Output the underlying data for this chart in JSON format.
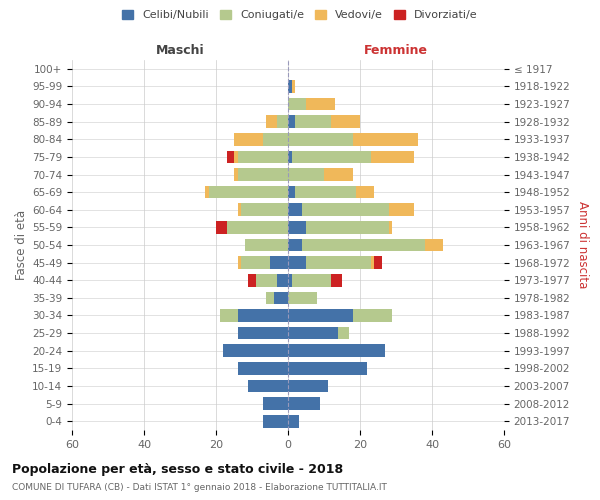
{
  "age_groups": [
    "0-4",
    "5-9",
    "10-14",
    "15-19",
    "20-24",
    "25-29",
    "30-34",
    "35-39",
    "40-44",
    "45-49",
    "50-54",
    "55-59",
    "60-64",
    "65-69",
    "70-74",
    "75-79",
    "80-84",
    "85-89",
    "90-94",
    "95-99",
    "100+"
  ],
  "birth_years": [
    "2013-2017",
    "2008-2012",
    "2003-2007",
    "1998-2002",
    "1993-1997",
    "1988-1992",
    "1983-1987",
    "1978-1982",
    "1973-1977",
    "1968-1972",
    "1963-1967",
    "1958-1962",
    "1953-1957",
    "1948-1952",
    "1943-1947",
    "1938-1942",
    "1933-1937",
    "1928-1932",
    "1923-1927",
    "1918-1922",
    "≤ 1917"
  ],
  "colors": {
    "celibi": "#4472a8",
    "coniugati": "#b5c98e",
    "vedovi": "#f0b85a",
    "divorziati": "#cc2222"
  },
  "maschi": {
    "celibi": [
      7,
      7,
      11,
      14,
      18,
      14,
      14,
      4,
      3,
      5,
      0,
      0,
      0,
      0,
      0,
      0,
      0,
      0,
      0,
      0,
      0
    ],
    "coniugati": [
      0,
      0,
      0,
      0,
      0,
      0,
      5,
      2,
      6,
      8,
      12,
      17,
      13,
      22,
      14,
      14,
      7,
      3,
      0,
      0,
      0
    ],
    "vedovi": [
      0,
      0,
      0,
      0,
      0,
      0,
      0,
      0,
      0,
      1,
      0,
      0,
      1,
      1,
      1,
      1,
      8,
      3,
      0,
      0,
      0
    ],
    "divorziati": [
      0,
      0,
      0,
      0,
      0,
      0,
      0,
      0,
      2,
      0,
      0,
      3,
      0,
      0,
      0,
      2,
      0,
      0,
      0,
      0,
      0
    ]
  },
  "femmine": {
    "celibi": [
      3,
      9,
      11,
      22,
      27,
      14,
      18,
      0,
      1,
      5,
      4,
      5,
      4,
      2,
      0,
      1,
      0,
      2,
      0,
      1,
      0
    ],
    "coniugati": [
      0,
      0,
      0,
      0,
      0,
      3,
      11,
      8,
      11,
      18,
      34,
      23,
      24,
      17,
      10,
      22,
      18,
      10,
      5,
      0,
      0
    ],
    "vedovi": [
      0,
      0,
      0,
      0,
      0,
      0,
      0,
      0,
      0,
      1,
      5,
      1,
      7,
      5,
      8,
      12,
      18,
      8,
      8,
      1,
      0
    ],
    "divorziati": [
      0,
      0,
      0,
      0,
      0,
      0,
      0,
      0,
      3,
      2,
      0,
      0,
      0,
      0,
      0,
      0,
      0,
      0,
      0,
      0,
      0
    ]
  },
  "xlim": 60,
  "title": "Popolazione per età, sesso e stato civile - 2018",
  "subtitle": "COMUNE DI TUFARA (CB) - Dati ISTAT 1° gennaio 2018 - Elaborazione TUTTITALIA.IT",
  "ylabel_left": "Fasce di età",
  "ylabel_right": "Anni di nascita",
  "xlabel_left": "Maschi",
  "xlabel_right": "Femmine",
  "legend_labels": [
    "Celibi/Nubili",
    "Coniugati/e",
    "Vedovi/e",
    "Divorziati/e"
  ],
  "bg_color": "#ffffff",
  "grid_color": "#cccccc",
  "maschi_label_color": "#444444",
  "femmine_label_color": "#cc3333",
  "right_label_color": "#cc3333"
}
